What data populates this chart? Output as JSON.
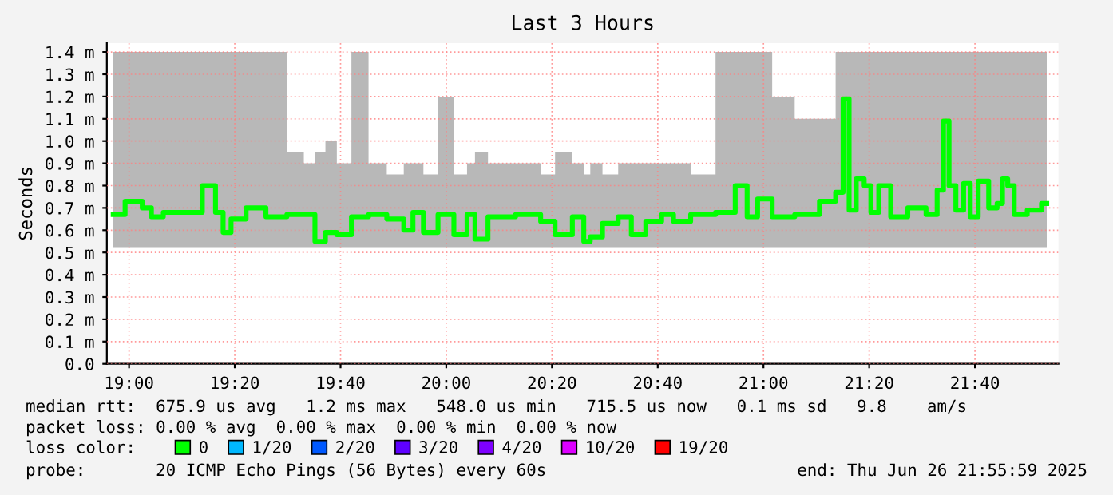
{
  "chart_data": {
    "type": "step",
    "title": "Last 3 Hours",
    "ylabel": "Seconds",
    "xlim": [
      18.93,
      21.93
    ],
    "ylim": [
      0,
      1.44
    ],
    "xticks": [
      {
        "value": 19,
        "label": "19:00"
      },
      {
        "value": 19.3333,
        "label": "19:20"
      },
      {
        "value": 19.6667,
        "label": "19:40"
      },
      {
        "value": 20,
        "label": "20:00"
      },
      {
        "value": 20.3333,
        "label": "20:20"
      },
      {
        "value": 20.6667,
        "label": "20:40"
      },
      {
        "value": 21,
        "label": "21:00"
      },
      {
        "value": 21.3333,
        "label": "21:20"
      },
      {
        "value": 21.6667,
        "label": "21:40"
      }
    ],
    "yticks": [
      {
        "value": 0,
        "label": "0.0"
      },
      {
        "value": 0.1,
        "label": "0.1 m"
      },
      {
        "value": 0.2,
        "label": "0.2 m"
      },
      {
        "value": 0.3,
        "label": "0.3 m"
      },
      {
        "value": 0.4,
        "label": "0.4 m"
      },
      {
        "value": 0.5,
        "label": "0.5 m"
      },
      {
        "value": 0.6,
        "label": "0.6 m"
      },
      {
        "value": 0.7,
        "label": "0.7 m"
      },
      {
        "value": 0.8,
        "label": "0.8 m"
      },
      {
        "value": 0.9,
        "label": "0.9 m"
      },
      {
        "value": 1.0,
        "label": "1.0 m"
      },
      {
        "value": 1.1,
        "label": "1.1 m"
      },
      {
        "value": 1.2,
        "label": "1.2 m"
      },
      {
        "value": 1.3,
        "label": "1.3 m"
      },
      {
        "value": 1.4,
        "label": "1.4 m"
      }
    ],
    "grid": true,
    "legend": "bottom",
    "x": [
      18.95,
      19.025,
      19.058,
      19.083,
      19.133,
      19.207,
      19.255,
      19.29,
      19.303,
      19.34,
      19.398,
      19.465,
      19.53,
      19.572,
      19.6,
      19.638,
      19.672,
      19.73,
      19.78,
      19.845,
      19.887,
      19.903,
      19.953,
      19.995,
      20.053,
      20.078,
      20.103,
      20.16,
      20.277,
      20.318,
      20.368,
      20.427,
      20.44,
      20.468,
      20.517,
      20.567,
      20.6,
      20.658,
      20.7,
      20.733,
      20.808,
      20.89,
      20.932,
      20.965,
      20.998,
      21.057,
      21.14,
      21.213,
      21.242,
      21.26,
      21.28,
      21.305,
      21.33,
      21.347,
      21.38,
      21.422,
      21.488,
      21.537,
      21.558,
      21.577,
      21.593,
      21.62,
      21.642,
      21.662,
      21.692,
      21.728,
      21.745,
      21.762,
      21.778,
      21.803,
      21.86,
      21.893
    ],
    "series": [
      {
        "name": "0",
        "color": "#00ff00",
        "values": [
          0.67,
          0.73,
          0.7,
          0.66,
          0.68,
          0.68,
          0.8,
          0.68,
          0.59,
          0.65,
          0.7,
          0.66,
          0.67,
          0.67,
          0.55,
          0.59,
          0.58,
          0.66,
          0.67,
          0.65,
          0.6,
          0.68,
          0.59,
          0.67,
          0.58,
          0.67,
          0.56,
          0.66,
          0.67,
          0.64,
          0.58,
          0.66,
          0.55,
          0.57,
          0.63,
          0.66,
          0.58,
          0.64,
          0.67,
          0.64,
          0.67,
          0.68,
          0.8,
          0.66,
          0.74,
          0.66,
          0.67,
          0.73,
          0.77,
          1.19,
          0.69,
          0.83,
          0.8,
          0.68,
          0.8,
          0.66,
          0.7,
          0.67,
          0.78,
          1.09,
          0.8,
          0.69,
          0.81,
          0.66,
          0.82,
          0.7,
          0.72,
          0.83,
          0.8,
          0.67,
          0.69,
          0.72
        ],
        "lower": [
          0.52,
          0.52,
          0.52,
          0.52,
          0.52,
          0.52,
          0.52,
          0.52,
          0.52,
          0.52,
          0.52,
          0.52,
          0.52,
          0.52,
          0.52,
          0.52,
          0.52,
          0.52,
          0.52,
          0.52,
          0.52,
          0.52,
          0.52,
          0.52,
          0.52,
          0.52,
          0.52,
          0.52,
          0.52,
          0.52,
          0.52,
          0.52,
          0.52,
          0.52,
          0.52,
          0.52,
          0.52,
          0.52,
          0.52,
          0.52,
          0.52,
          0.52,
          0.52,
          0.52,
          0.52,
          0.52,
          0.52,
          0.52,
          0.52,
          0.52,
          0.52,
          0.52,
          0.52,
          0.52,
          0.52,
          0.52,
          0.52,
          0.52,
          0.52,
          0.52,
          0.52,
          0.52,
          0.52,
          0.52,
          0.52,
          0.52,
          0.52,
          0.52,
          0.52,
          0.52,
          0.52,
          0.52
        ],
        "upper": [
          1.4,
          1.4,
          1.4,
          1.4,
          1.4,
          1.4,
          1.4,
          1.4,
          1.4,
          1.4,
          1.4,
          1.4,
          0.95,
          0.9,
          0.95,
          1.0,
          0.9,
          1.4,
          0.9,
          0.85,
          0.9,
          0.9,
          0.85,
          1.2,
          0.85,
          0.9,
          0.95,
          0.9,
          0.9,
          0.85,
          0.95,
          0.9,
          0.85,
          0.9,
          0.85,
          0.9,
          0.9,
          0.9,
          0.9,
          0.9,
          0.85,
          1.4,
          1.4,
          1.4,
          1.4,
          1.2,
          1.1,
          1.1,
          1.4,
          1.4,
          1.4,
          1.4,
          1.4,
          1.4,
          1.4,
          1.4,
          1.4,
          1.4,
          1.4,
          1.4,
          1.4,
          1.4,
          1.4,
          1.4,
          1.4,
          1.4,
          1.4,
          1.4,
          1.4,
          1.4,
          1.4,
          1.4
        ]
      },
      {
        "name": "1/20",
        "color": "#00b8ff",
        "values": [
          null,
          null,
          null,
          null,
          null,
          null,
          null,
          null,
          null,
          null,
          null,
          null,
          null,
          null,
          null,
          null,
          null,
          null,
          null,
          null,
          null,
          null,
          null,
          null,
          null,
          null,
          null,
          null,
          null,
          null,
          null,
          null,
          null,
          null,
          null,
          null,
          null,
          null,
          null,
          null,
          null,
          null,
          null,
          null,
          null,
          null,
          null,
          null,
          null,
          null,
          null,
          null,
          null,
          null,
          null,
          null,
          null,
          null,
          null,
          null,
          null,
          null,
          null,
          null,
          null,
          null,
          null,
          null,
          null,
          null,
          null,
          null
        ]
      },
      {
        "name": "2/20",
        "color": "#0059ff",
        "values": [
          null,
          null,
          null,
          null,
          null,
          null,
          null,
          null,
          null,
          null,
          null,
          null,
          null,
          null,
          null,
          null,
          null,
          null,
          null,
          null,
          null,
          null,
          null,
          null,
          null,
          null,
          null,
          null,
          null,
          null,
          null,
          null,
          null,
          null,
          null,
          null,
          null,
          null,
          null,
          null,
          null,
          null,
          null,
          null,
          null,
          null,
          null,
          null,
          null,
          null,
          null,
          null,
          null,
          null,
          null,
          null,
          null,
          null,
          null,
          null,
          null,
          null,
          null,
          null,
          null,
          null,
          null,
          null,
          null,
          null,
          null,
          null
        ]
      },
      {
        "name": "3/20",
        "color": "#5e00ff",
        "values": [
          null,
          null,
          null,
          null,
          null,
          null,
          null,
          null,
          null,
          null,
          null,
          null,
          null,
          null,
          null,
          null,
          null,
          null,
          null,
          null,
          null,
          null,
          null,
          null,
          null,
          null,
          null,
          null,
          null,
          null,
          null,
          null,
          null,
          null,
          null,
          null,
          null,
          null,
          null,
          null,
          null,
          null,
          null,
          null,
          null,
          null,
          null,
          null,
          null,
          null,
          null,
          null,
          null,
          null,
          null,
          null,
          null,
          null,
          null,
          null,
          null,
          null,
          null,
          null,
          null,
          null,
          null,
          null,
          null,
          null,
          null,
          null
        ]
      },
      {
        "name": "4/20",
        "color": "#7e00ff",
        "values": [
          null,
          null,
          null,
          null,
          null,
          null,
          null,
          null,
          null,
          null,
          null,
          null,
          null,
          null,
          null,
          null,
          null,
          null,
          null,
          null,
          null,
          null,
          null,
          null,
          null,
          null,
          null,
          null,
          null,
          null,
          null,
          null,
          null,
          null,
          null,
          null,
          null,
          null,
          null,
          null,
          null,
          null,
          null,
          null,
          null,
          null,
          null,
          null,
          null,
          null,
          null,
          null,
          null,
          null,
          null,
          null,
          null,
          null,
          null,
          null,
          null,
          null,
          null,
          null,
          null,
          null,
          null,
          null,
          null,
          null,
          null,
          null
        ]
      },
      {
        "name": "10/20",
        "color": "#dd00ff",
        "values": [
          null,
          null,
          null,
          null,
          null,
          null,
          null,
          null,
          null,
          null,
          null,
          null,
          null,
          null,
          null,
          null,
          null,
          null,
          null,
          null,
          null,
          null,
          null,
          null,
          null,
          null,
          null,
          null,
          null,
          null,
          null,
          null,
          null,
          null,
          null,
          null,
          null,
          null,
          null,
          null,
          null,
          null,
          null,
          null,
          null,
          null,
          null,
          null,
          null,
          null,
          null,
          null,
          null,
          null,
          null,
          null,
          null,
          null,
          null,
          null,
          null,
          null,
          null,
          null,
          null,
          null,
          null,
          null,
          null,
          null,
          null,
          null
        ]
      },
      {
        "name": "19/20",
        "color": "#ff0000",
        "values": [
          null,
          null,
          null,
          null,
          null,
          null,
          null,
          null,
          null,
          null,
          null,
          null,
          null,
          null,
          null,
          null,
          null,
          null,
          null,
          null,
          null,
          null,
          null,
          null,
          null,
          null,
          null,
          null,
          null,
          null,
          null,
          null,
          null,
          null,
          null,
          null,
          null,
          null,
          null,
          null,
          null,
          null,
          null,
          null,
          null,
          null,
          null,
          null,
          null,
          null,
          null,
          null,
          null,
          null,
          null,
          null,
          null,
          null,
          null,
          null,
          null,
          null,
          null,
          null,
          null,
          null,
          null,
          null,
          null,
          null,
          null,
          null
        ]
      }
    ],
    "annotations": [
      "median rtt:  675.9 us avg   1.2 ms max   548.0 us min   715.5 us now   0.1 ms sd   9.8    am/s",
      "packet loss: 0.00 % avg  0.00 % max  0.00 % min  0.00 % now",
      "loss color:",
      "probe:       20 ICMP Echo Pings (56 Bytes) every 60s",
      "end: Thu Jun 26 21:55:59 2025"
    ]
  }
}
